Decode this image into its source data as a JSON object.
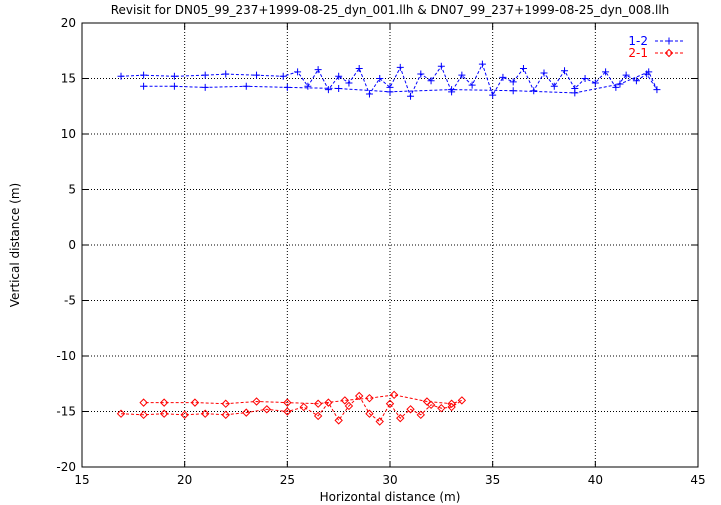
{
  "chart_data": {
    "type": "scatter",
    "title": "Revisit for DN05_99_237+1999-08-25_dyn_001.llh & DN07_99_237+1999-08-25_dyn_008.llh",
    "xlabel": "Horizontal distance (m)",
    "ylabel": "Vertical distance (m)",
    "xlim": [
      15,
      45
    ],
    "ylim": [
      -20,
      20
    ],
    "xticks": [
      15,
      20,
      25,
      30,
      35,
      40,
      45
    ],
    "yticks": [
      -20,
      -15,
      -10,
      -5,
      0,
      5,
      10,
      15,
      20
    ],
    "grid": true,
    "legend_position": "top-right",
    "series": [
      {
        "name": "1-2",
        "color": "#0000ff",
        "marker": "plus",
        "line": "dashed",
        "x": [
          16.9,
          18.0,
          19.5,
          21.0,
          22.0,
          23.5,
          24.8,
          25.5,
          26.0,
          26.5,
          27.0,
          27.5,
          28.0,
          28.5,
          29.0,
          29.5,
          30.0,
          30.5,
          31.0,
          31.5,
          32.0,
          32.5,
          33.0,
          33.5,
          34.0,
          34.5,
          35.0,
          35.5,
          36.0,
          36.5,
          37.0,
          37.5,
          38.0,
          38.5,
          39.0,
          39.5,
          40.0,
          40.5,
          41.0,
          41.5,
          42.0,
          42.5,
          43.0,
          42.6,
          41.2,
          39.0,
          36.0,
          33.0,
          30.0,
          27.5,
          25.0,
          23.0,
          21.0,
          19.5,
          18.0
        ],
        "y": [
          15.2,
          15.3,
          15.2,
          15.3,
          15.4,
          15.3,
          15.2,
          15.6,
          14.3,
          15.8,
          14.0,
          15.2,
          14.6,
          15.9,
          13.6,
          15.0,
          14.2,
          16.0,
          13.4,
          15.4,
          14.8,
          16.1,
          13.8,
          15.3,
          14.4,
          16.3,
          13.5,
          15.1,
          14.7,
          15.9,
          13.9,
          15.5,
          14.3,
          15.7,
          14.1,
          15.0,
          14.6,
          15.6,
          14.2,
          15.3,
          14.8,
          15.4,
          14.0,
          15.6,
          14.5,
          13.7,
          13.9,
          14.0,
          13.8,
          14.1,
          14.2,
          14.3,
          14.2,
          14.3,
          14.3
        ]
      },
      {
        "name": "2-1",
        "color": "#ff0000",
        "marker": "diamond",
        "line": "dashed",
        "x": [
          16.9,
          18.0,
          19.0,
          20.0,
          21.0,
          22.0,
          23.0,
          24.0,
          25.0,
          25.8,
          26.5,
          27.0,
          27.5,
          28.0,
          28.5,
          29.0,
          29.5,
          30.0,
          30.5,
          31.0,
          31.5,
          32.0,
          32.5,
          33.0,
          33.5,
          33.0,
          31.8,
          30.2,
          29.0,
          27.8,
          26.5,
          25.0,
          23.5,
          22.0,
          20.5,
          19.0,
          18.0
        ],
        "y": [
          -15.2,
          -15.3,
          -15.2,
          -15.3,
          -15.2,
          -15.3,
          -15.1,
          -14.8,
          -15.0,
          -14.6,
          -15.4,
          -14.2,
          -15.8,
          -14.5,
          -13.6,
          -15.2,
          -15.9,
          -14.3,
          -15.6,
          -14.8,
          -15.3,
          -14.4,
          -14.7,
          -14.6,
          -14.0,
          -14.3,
          -14.1,
          -13.5,
          -13.8,
          -14.0,
          -14.3,
          -14.2,
          -14.1,
          -14.3,
          -14.2,
          -14.2,
          -14.2
        ]
      }
    ]
  }
}
